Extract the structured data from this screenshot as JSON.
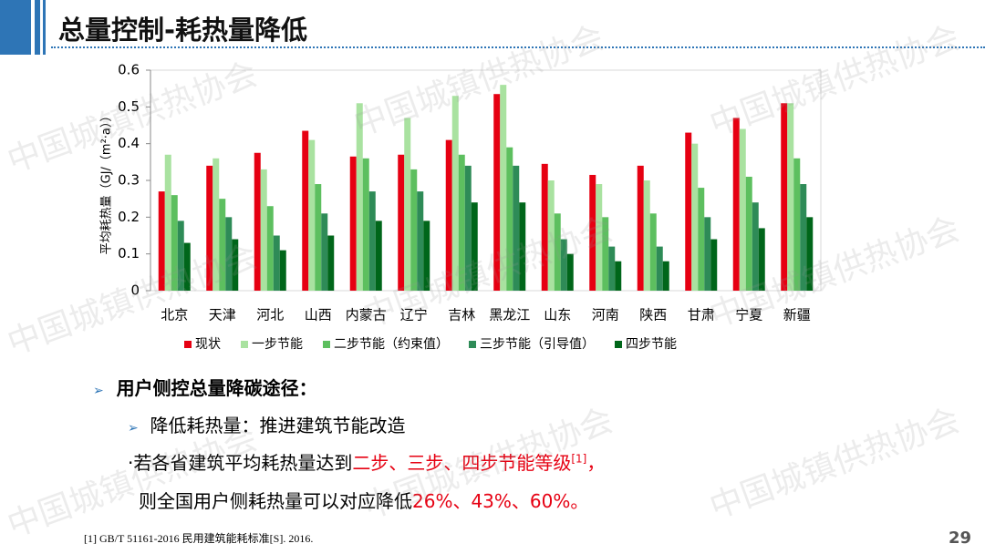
{
  "header": {
    "title": "总量控制-耗热量降低"
  },
  "chart_data": {
    "type": "bar",
    "y_label": "平均耗热量（GJ/（m²·a））",
    "categories": [
      "北京",
      "天津",
      "河北",
      "山西",
      "内蒙古",
      "辽宁",
      "吉林",
      "黑龙江",
      "山东",
      "河南",
      "陕西",
      "甘肃",
      "宁夏",
      "新疆"
    ],
    "series": [
      {
        "name": "现状",
        "color": "#e60012",
        "values": [
          0.27,
          0.34,
          0.375,
          0.435,
          0.365,
          0.37,
          0.41,
          0.535,
          0.345,
          0.315,
          0.34,
          0.43,
          0.47,
          0.51
        ]
      },
      {
        "name": "一步节能",
        "color": "#a9e2a0",
        "values": [
          0.37,
          0.36,
          0.33,
          0.41,
          0.51,
          0.47,
          0.53,
          0.56,
          0.3,
          0.29,
          0.3,
          0.4,
          0.44,
          0.51
        ]
      },
      {
        "name": "二步节能（约束值）",
        "color": "#5dbf5f",
        "values": [
          0.26,
          0.25,
          0.23,
          0.29,
          0.36,
          0.33,
          0.37,
          0.39,
          0.21,
          0.2,
          0.21,
          0.28,
          0.31,
          0.36
        ]
      },
      {
        "name": "三步节能（引导值）",
        "color": "#2e8b57",
        "values": [
          0.19,
          0.2,
          0.15,
          0.21,
          0.27,
          0.27,
          0.34,
          0.34,
          0.14,
          0.12,
          0.12,
          0.2,
          0.24,
          0.29
        ]
      },
      {
        "name": "四步节能",
        "color": "#00661a",
        "values": [
          0.13,
          0.14,
          0.11,
          0.15,
          0.19,
          0.19,
          0.24,
          0.24,
          0.1,
          0.08,
          0.08,
          0.14,
          0.17,
          0.2
        ]
      }
    ],
    "ylim": [
      0,
      0.6
    ],
    "yticks": [
      0,
      0.1,
      0.2,
      0.3,
      0.4,
      0.5,
      0.6
    ],
    "legend": "bottom"
  },
  "bullets": {
    "heading": "用户侧控总量降碳途径：",
    "sub": "降低耗热量：推进建筑节能改造",
    "line1_a": "·若各省建筑平均耗热量达到",
    "line1_b": "二步、三步、四步节能等级",
    "line1_ref": "[1]",
    "line1_c": "，",
    "line2_a": "则全国用户侧耗热量可以对应降低",
    "line2_b": "26%、43%、60%。"
  },
  "footnote": "[1] GB/T 51161-2016 民用建筑能耗标准[S]. 2016.",
  "page_number": "29",
  "watermark": "中国城镇供热协会"
}
